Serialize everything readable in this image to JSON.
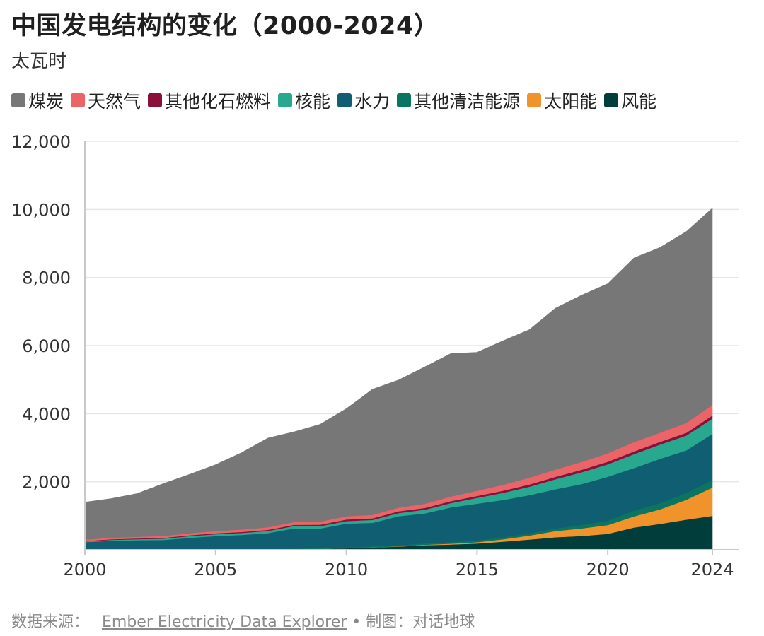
{
  "header": {
    "title": "中国发电结构的变化（2000-2024）",
    "unit": "太瓦时"
  },
  "footer": {
    "source_label": "数据来源：",
    "source_link": "Ember Electricity Data Explorer",
    "separator": "•",
    "credit": "制图：对话地球"
  },
  "chart_data": {
    "type": "area",
    "stacked": true,
    "title": "中国发电结构的变化（2000-2024）",
    "ylabel": "太瓦时",
    "ylim": [
      0,
      12000
    ],
    "xlim": [
      2000,
      2024
    ],
    "y_ticks": [
      2000,
      4000,
      6000,
      8000,
      10000,
      12000
    ],
    "y_tick_labels": [
      "2,000",
      "4,000",
      "6,000",
      "8,000",
      "10,000",
      "12,000"
    ],
    "x_ticks": [
      2000,
      2005,
      2010,
      2015,
      2020,
      2024
    ],
    "x_tick_labels": [
      "2000",
      "2005",
      "2010",
      "2015",
      "2020",
      "2024"
    ],
    "grid": "horizontal",
    "legend_position": "top",
    "x": [
      2000,
      2001,
      2002,
      2003,
      2004,
      2005,
      2006,
      2007,
      2008,
      2009,
      2010,
      2011,
      2012,
      2013,
      2014,
      2015,
      2016,
      2017,
      2018,
      2019,
      2020,
      2021,
      2022,
      2023,
      2024
    ],
    "series": [
      {
        "name": "风能",
        "color": "#003d3b",
        "values": [
          1,
          2,
          2,
          2,
          3,
          3,
          4,
          6,
          13,
          27,
          45,
          70,
          95,
          135,
          155,
          185,
          240,
          300,
          370,
          405,
          467,
          656,
          762,
          886,
          997
        ]
      },
      {
        "name": "太阳能",
        "color": "#f0932b",
        "values": [
          0,
          0,
          0,
          0,
          0,
          0,
          0,
          0,
          1,
          1,
          1,
          3,
          6,
          15,
          25,
          40,
          70,
          120,
          180,
          225,
          260,
          327,
          428,
          584,
          834
        ]
      },
      {
        "name": "其他清洁能源",
        "color": "#0a7560",
        "values": [
          3,
          4,
          5,
          6,
          8,
          10,
          12,
          14,
          16,
          20,
          25,
          30,
          35,
          40,
          45,
          50,
          55,
          65,
          80,
          100,
          130,
          170,
          185,
          200,
          225
        ]
      },
      {
        "name": "水力",
        "color": "#105e72",
        "values": [
          220,
          260,
          275,
          280,
          340,
          390,
          420,
          470,
          600,
          580,
          700,
          690,
          850,
          880,
          1020,
          1080,
          1100,
          1120,
          1150,
          1200,
          1290,
          1250,
          1300,
          1250,
          1350
        ]
      },
      {
        "name": "核能",
        "color": "#28a98f",
        "values": [
          20,
          25,
          30,
          40,
          50,
          55,
          60,
          65,
          70,
          70,
          75,
          85,
          95,
          110,
          130,
          170,
          210,
          248,
          295,
          350,
          366,
          408,
          418,
          435,
          451
        ]
      },
      {
        "name": "其他化石燃料",
        "color": "#8a0f3a",
        "values": [
          15,
          18,
          20,
          22,
          25,
          28,
          30,
          32,
          35,
          40,
          45,
          48,
          50,
          52,
          55,
          58,
          62,
          65,
          70,
          72,
          75,
          78,
          80,
          82,
          90
        ]
      },
      {
        "name": "天然气",
        "color": "#eb6468",
        "values": [
          40,
          45,
          50,
          55,
          60,
          65,
          70,
          75,
          80,
          90,
          95,
          100,
          110,
          120,
          135,
          150,
          175,
          200,
          215,
          230,
          250,
          275,
          270,
          290,
          310
        ]
      },
      {
        "name": "煤炭",
        "color": "#777777",
        "values": [
          1100,
          1150,
          1270,
          1540,
          1730,
          1950,
          2260,
          2620,
          2650,
          2860,
          3160,
          3690,
          3750,
          4020,
          4200,
          4070,
          4230,
          4350,
          4740,
          4900,
          4980,
          5410,
          5440,
          5620,
          5780
        ]
      }
    ]
  }
}
